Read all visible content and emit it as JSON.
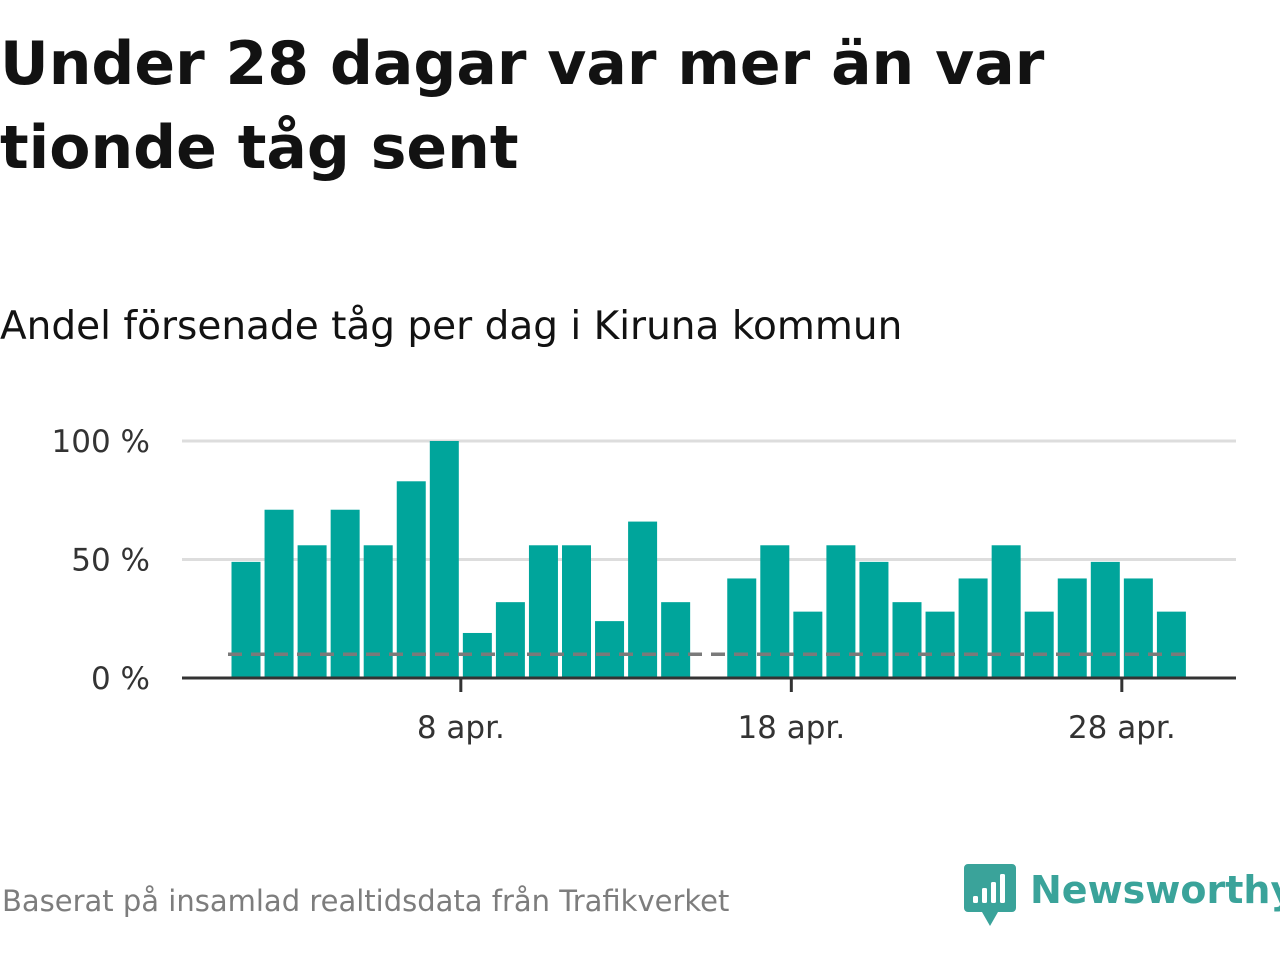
{
  "title": "Under 28 dagar var mer än var tionde tåg sent",
  "subtitle": "Andel försenade tåg per dag i Kiruna kommun",
  "footer": "Baserat på insamlad realtidsdata från Trafikverket",
  "brand": {
    "name": "Newsworthy",
    "icon": "newsworthy-logo-icon"
  },
  "colors": {
    "bar": "#00a59b",
    "reference_line": "#7a7a7a",
    "grid": "#dddddd",
    "axis": "#333333",
    "brand": "#3aa39a"
  },
  "chart_data": {
    "type": "bar",
    "title": "Andel försenade tåg per dag i Kiruna kommun",
    "xlabel": "",
    "ylabel": "",
    "unit": "%",
    "ylim": [
      0,
      100
    ],
    "y_ticks": [
      0,
      50,
      100
    ],
    "y_tick_labels": [
      "0 %",
      "50 %",
      "100 %"
    ],
    "categories": [
      "1 apr.",
      "2 apr.",
      "3 apr.",
      "4 apr.",
      "5 apr.",
      "6 apr.",
      "7 apr.",
      "8 apr.",
      "9 apr.",
      "10 apr.",
      "11 apr.",
      "12 apr.",
      "13 apr.",
      "14 apr.",
      "15 apr.",
      "16 apr.",
      "17 apr.",
      "18 apr.",
      "19 apr.",
      "20 apr.",
      "21 apr.",
      "22 apr.",
      "23 apr.",
      "24 apr.",
      "25 apr.",
      "26 apr.",
      "27 apr.",
      "28 apr.",
      "29 apr."
    ],
    "values": [
      49,
      71,
      56,
      71,
      56,
      83,
      100,
      19,
      32,
      56,
      56,
      24,
      66,
      32,
      null,
      42,
      56,
      28,
      56,
      49,
      32,
      28,
      42,
      56,
      28,
      42,
      49,
      42,
      28
    ],
    "x_tick_labels": [
      {
        "category": "8 apr.",
        "label": "8 apr."
      },
      {
        "category": "18 apr.",
        "label": "18 apr."
      },
      {
        "category": "28 apr.",
        "label": "28 apr."
      }
    ],
    "reference_value": 10,
    "grid": true,
    "legend": "none"
  }
}
